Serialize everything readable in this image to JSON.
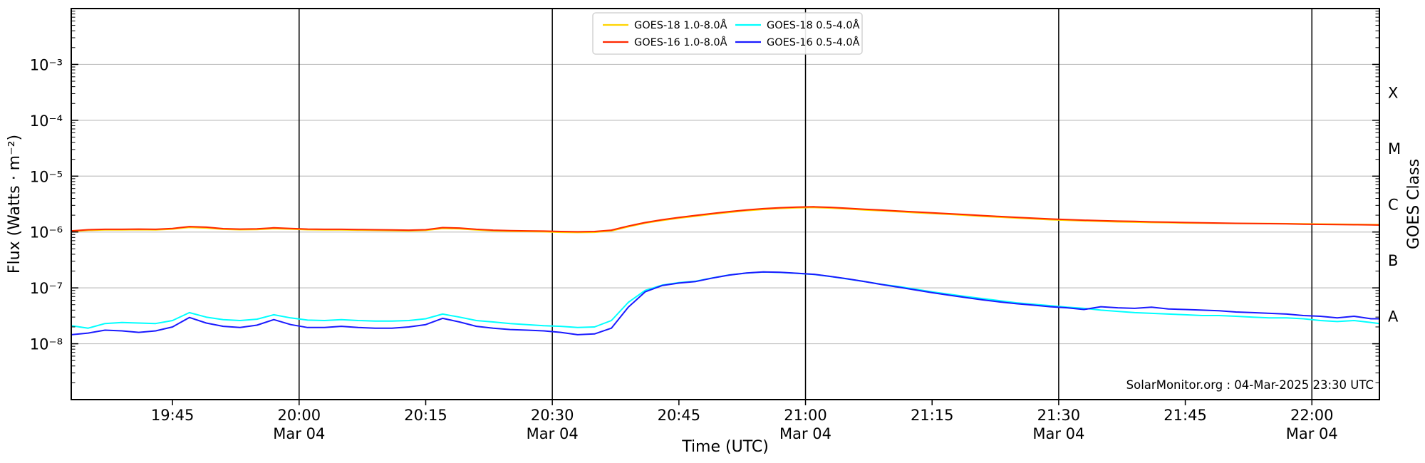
{
  "chart_data": {
    "type": "line",
    "title": "",
    "xlabel": "Time (UTC)",
    "ylabel_left": "Flux (Watts · m⁻²)",
    "ylabel_right": "GOES Class",
    "annotation": "SolarMonitor.org : 04-Mar-2025 23:30 UTC",
    "legend": {
      "position": "upper center",
      "ncol": 2
    },
    "colors": {
      "grid": "#c2c2c2",
      "frame": "#000000",
      "date_line": "#000000",
      "background": "#ffffff"
    },
    "x_axis": {
      "timezone": "UTC",
      "xlim_minutes": [
        1173,
        1328
      ],
      "ticks": [
        {
          "minute": 1185,
          "label": "19:45",
          "date": null
        },
        {
          "minute": 1200,
          "label": "20:00",
          "date": "Mar 04"
        },
        {
          "minute": 1215,
          "label": "20:15",
          "date": null
        },
        {
          "minute": 1230,
          "label": "20:30",
          "date": "Mar 04"
        },
        {
          "minute": 1245,
          "label": "20:45",
          "date": null
        },
        {
          "minute": 1260,
          "label": "21:00",
          "date": "Mar 04"
        },
        {
          "minute": 1275,
          "label": "21:15",
          "date": null
        },
        {
          "minute": 1290,
          "label": "21:30",
          "date": "Mar 04"
        },
        {
          "minute": 1305,
          "label": "21:45",
          "date": null
        },
        {
          "minute": 1320,
          "label": "22:00",
          "date": "Mar 04"
        }
      ],
      "date_line_minutes": [
        1200,
        1230,
        1260,
        1290,
        1320
      ]
    },
    "y_axis": {
      "scale": "log",
      "unit": "W m⁻²",
      "ylim_log10": [
        -9,
        -2
      ],
      "tick_exponents": [
        -3,
        -4,
        -5,
        -6,
        -7,
        -8
      ],
      "tick_labels": [
        "10⁻³",
        "10⁻⁴",
        "10⁻⁵",
        "10⁻⁶",
        "10⁻⁷",
        "10⁻⁸"
      ]
    },
    "goes_classes": [
      {
        "label": "X",
        "log10_center": -3.5
      },
      {
        "label": "M",
        "log10_center": -4.5
      },
      {
        "label": "C",
        "log10_center": -5.5
      },
      {
        "label": "B",
        "log10_center": -6.5
      },
      {
        "label": "A",
        "log10_center": -7.5
      }
    ],
    "x_minutes": [
      1173,
      1175,
      1177,
      1179,
      1181,
      1183,
      1185,
      1187,
      1189,
      1191,
      1193,
      1195,
      1197,
      1199,
      1201,
      1203,
      1205,
      1207,
      1209,
      1211,
      1213,
      1215,
      1217,
      1219,
      1221,
      1223,
      1225,
      1227,
      1229,
      1231,
      1233,
      1235,
      1237,
      1239,
      1241,
      1243,
      1245,
      1247,
      1249,
      1251,
      1253,
      1255,
      1257,
      1259,
      1261,
      1263,
      1265,
      1267,
      1269,
      1271,
      1273,
      1275,
      1277,
      1279,
      1281,
      1283,
      1285,
      1287,
      1289,
      1291,
      1293,
      1295,
      1297,
      1299,
      1301,
      1303,
      1305,
      1307,
      1309,
      1311,
      1313,
      1315,
      1317,
      1319,
      1321,
      1323,
      1325,
      1327,
      1328
    ],
    "series": [
      {
        "name": "GOES-18 1.0-8.0Å",
        "color": "#FFD400",
        "values": [
          1.02e-06,
          1.07e-06,
          1.09e-06,
          1.09e-06,
          1.1e-06,
          1.09e-06,
          1.13e-06,
          1.21e-06,
          1.18e-06,
          1.12e-06,
          1.1e-06,
          1.11e-06,
          1.15e-06,
          1.13e-06,
          1.1e-06,
          1.09e-06,
          1.09e-06,
          1.08e-06,
          1.07e-06,
          1.06e-06,
          1.05e-06,
          1.07e-06,
          1.16e-06,
          1.14e-06,
          1.09e-06,
          1.05e-06,
          1.03e-06,
          1.02e-06,
          1.01e-06,
          9.9e-07,
          9.8e-07,
          9.9e-07,
          1.05e-06,
          1.24e-06,
          1.44e-06,
          1.61e-06,
          1.77e-06,
          1.92e-06,
          2.09e-06,
          2.25e-06,
          2.41e-06,
          2.54e-06,
          2.64e-06,
          2.71e-06,
          2.75e-06,
          2.68e-06,
          2.58e-06,
          2.48e-06,
          2.4e-06,
          2.31e-06,
          2.22e-06,
          2.14e-06,
          2.07e-06,
          1.99e-06,
          1.91e-06,
          1.84e-06,
          1.78e-06,
          1.72e-06,
          1.66e-06,
          1.62e-06,
          1.58e-06,
          1.55e-06,
          1.52e-06,
          1.5e-06,
          1.48e-06,
          1.47e-06,
          1.45e-06,
          1.44e-06,
          1.43e-06,
          1.42e-06,
          1.42e-06,
          1.42e-06,
          1.41e-06,
          1.4e-06,
          1.39e-06,
          1.38e-06,
          1.37e-06,
          1.36e-06,
          1.36e-06
        ]
      },
      {
        "name": "GOES-16 1.0-8.0Å",
        "color": "#FF2800",
        "values": [
          1.05e-06,
          1.1e-06,
          1.12e-06,
          1.12e-06,
          1.13e-06,
          1.12e-06,
          1.16e-06,
          1.25e-06,
          1.22e-06,
          1.15e-06,
          1.13e-06,
          1.14e-06,
          1.19e-06,
          1.16e-06,
          1.13e-06,
          1.12e-06,
          1.12e-06,
          1.11e-06,
          1.1e-06,
          1.09e-06,
          1.08e-06,
          1.1e-06,
          1.2e-06,
          1.18e-06,
          1.12e-06,
          1.08e-06,
          1.06e-06,
          1.05e-06,
          1.04e-06,
          1.02e-06,
          1.01e-06,
          1.02e-06,
          1.08e-06,
          1.28e-06,
          1.48e-06,
          1.66e-06,
          1.82e-06,
          1.98e-06,
          2.15e-06,
          2.32e-06,
          2.48e-06,
          2.62e-06,
          2.72e-06,
          2.79e-06,
          2.83e-06,
          2.76e-06,
          2.66e-06,
          2.56e-06,
          2.47e-06,
          2.38e-06,
          2.29e-06,
          2.21e-06,
          2.13e-06,
          2.05e-06,
          1.97e-06,
          1.9e-06,
          1.83e-06,
          1.77e-06,
          1.71e-06,
          1.67e-06,
          1.63e-06,
          1.6e-06,
          1.57e-06,
          1.55e-06,
          1.52e-06,
          1.5e-06,
          1.48e-06,
          1.46e-06,
          1.45e-06,
          1.43e-06,
          1.42e-06,
          1.41e-06,
          1.4e-06,
          1.38e-06,
          1.37e-06,
          1.36e-06,
          1.35e-06,
          1.34e-06,
          1.33e-06
        ]
      },
      {
        "name": "GOES-18 0.5-4.0Å",
        "color": "#00FFFF",
        "values": [
          2.1e-08,
          1.9e-08,
          2.3e-08,
          2.4e-08,
          2.35e-08,
          2.3e-08,
          2.6e-08,
          3.6e-08,
          3e-08,
          2.7e-08,
          2.6e-08,
          2.75e-08,
          3.3e-08,
          2.9e-08,
          2.65e-08,
          2.6e-08,
          2.7e-08,
          2.6e-08,
          2.55e-08,
          2.55e-08,
          2.6e-08,
          2.8e-08,
          3.4e-08,
          3e-08,
          2.6e-08,
          2.45e-08,
          2.3e-08,
          2.2e-08,
          2.1e-08,
          2.05e-08,
          1.95e-08,
          2e-08,
          2.6e-08,
          5.5e-08,
          9e-08,
          1.12e-07,
          1.24e-07,
          1.32e-07,
          1.51e-07,
          1.71e-07,
          1.84e-07,
          1.92e-07,
          1.89e-07,
          1.82e-07,
          1.74e-07,
          1.59e-07,
          1.44e-07,
          1.3e-07,
          1.16e-07,
          1.06e-07,
          9.5e-08,
          8.5e-08,
          7.7e-08,
          7e-08,
          6.4e-08,
          5.9e-08,
          5.4e-08,
          5.1e-08,
          4.8e-08,
          4.5e-08,
          4.3e-08,
          4e-08,
          3.8e-08,
          3.6e-08,
          3.5e-08,
          3.4e-08,
          3.3e-08,
          3.2e-08,
          3.2e-08,
          3.1e-08,
          3e-08,
          2.9e-08,
          2.9e-08,
          2.8e-08,
          2.6e-08,
          2.5e-08,
          2.6e-08,
          2.4e-08,
          2.3e-08
        ]
      },
      {
        "name": "GOES-16 0.5-4.0Å",
        "color": "#1A1AFF",
        "values": [
          1.45e-08,
          1.55e-08,
          1.75e-08,
          1.7e-08,
          1.6e-08,
          1.7e-08,
          2e-08,
          2.95e-08,
          2.35e-08,
          2.05e-08,
          1.95e-08,
          2.15e-08,
          2.7e-08,
          2.2e-08,
          1.95e-08,
          1.95e-08,
          2.05e-08,
          1.95e-08,
          1.9e-08,
          1.9e-08,
          2e-08,
          2.2e-08,
          2.85e-08,
          2.45e-08,
          2.05e-08,
          1.9e-08,
          1.8e-08,
          1.75e-08,
          1.7e-08,
          1.6e-08,
          1.45e-08,
          1.5e-08,
          1.9e-08,
          4.5e-08,
          8.5e-08,
          1.1e-07,
          1.22e-07,
          1.3e-07,
          1.5e-07,
          1.7e-07,
          1.85e-07,
          1.93e-07,
          1.9e-07,
          1.83e-07,
          1.75e-07,
          1.6e-07,
          1.45e-07,
          1.3e-07,
          1.15e-07,
          1.03e-07,
          9.2e-08,
          8.2e-08,
          7.4e-08,
          6.7e-08,
          6.1e-08,
          5.6e-08,
          5.2e-08,
          4.9e-08,
          4.6e-08,
          4.4e-08,
          4.1e-08,
          4.6e-08,
          4.4e-08,
          4.3e-08,
          4.5e-08,
          4.2e-08,
          4.1e-08,
          4e-08,
          3.9e-08,
          3.7e-08,
          3.6e-08,
          3.5e-08,
          3.4e-08,
          3.2e-08,
          3.1e-08,
          2.9e-08,
          3.1e-08,
          2.8e-08,
          2.8e-08
        ]
      }
    ]
  }
}
